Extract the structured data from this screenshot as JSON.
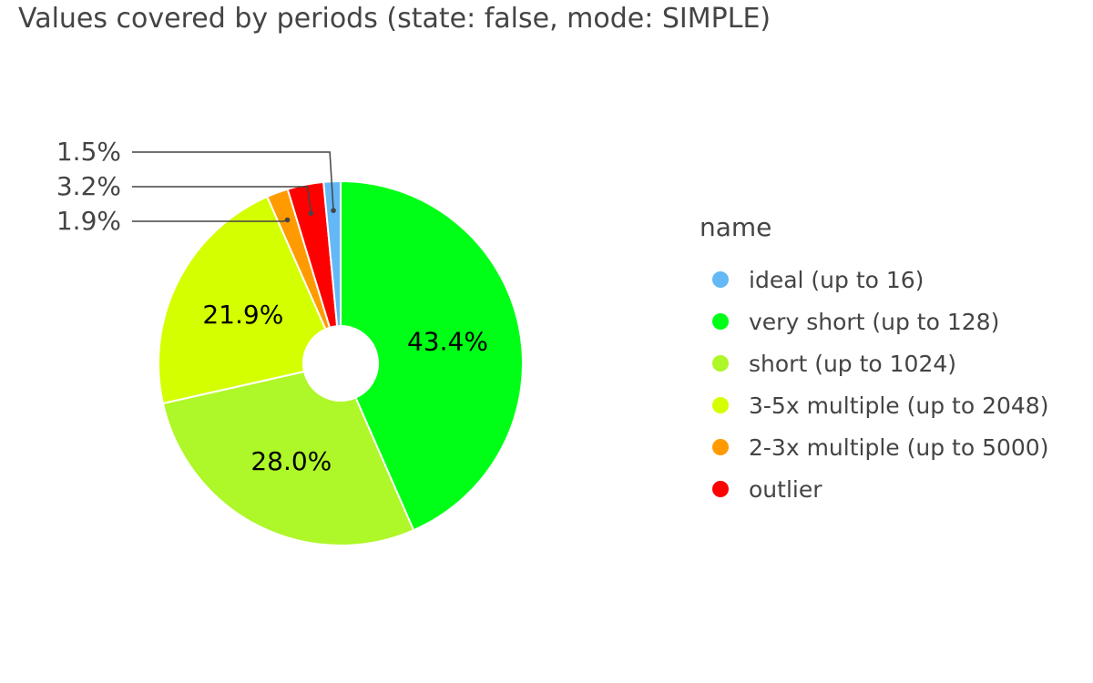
{
  "chart_data": {
    "type": "pie",
    "title": "Values covered by periods (state: false, mode: SIMPLE)",
    "legend_title": "name",
    "legend_position": "right",
    "donut": true,
    "slices": [
      {
        "name": "ideal (up to 16)",
        "value": 1.5,
        "label": "1.5%",
        "color": "#63b8f5",
        "label_position": "outside"
      },
      {
        "name": "very short (up to 128)",
        "value": 43.4,
        "label": "43.4%",
        "color": "#00ff16",
        "label_position": "inside"
      },
      {
        "name": "short (up to 1024)",
        "value": 28.0,
        "label": "28.0%",
        "color": "#aef728",
        "label_position": "inside"
      },
      {
        "name": "3-5x multiple (up to 2048)",
        "value": 21.9,
        "label": "21.9%",
        "color": "#d4ff00",
        "label_position": "inside"
      },
      {
        "name": "2-3x multiple (up to 5000)",
        "value": 1.9,
        "label": "1.9%",
        "color": "#ff9b00",
        "label_position": "outside"
      },
      {
        "name": "outlier",
        "value": 3.2,
        "label": "3.2%",
        "color": "#ff0000",
        "label_position": "outside"
      }
    ]
  }
}
